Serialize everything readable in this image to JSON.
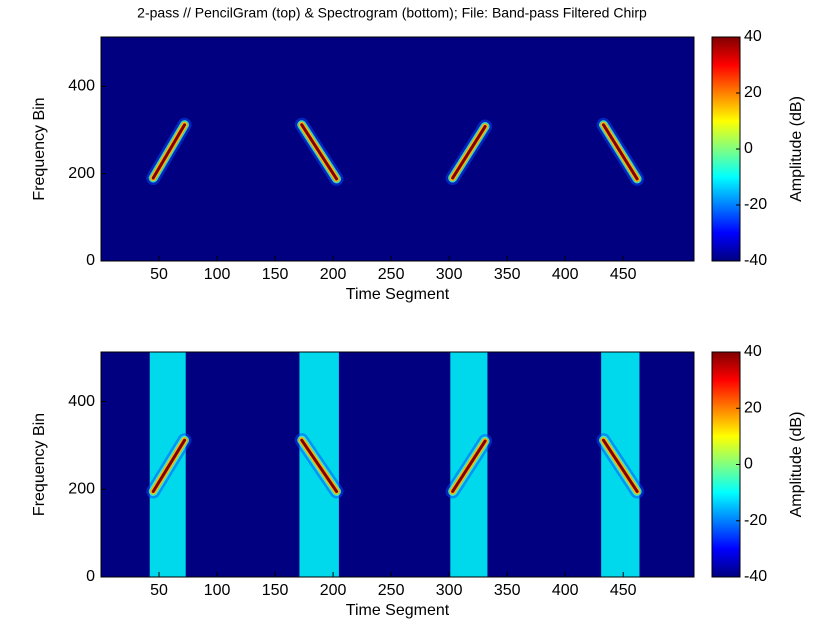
{
  "chart_data": [
    {
      "type": "spectrogram",
      "title": "2-pass // PencilGram (top) & Spectrogram (bottom); File: Band-pass Filtered Chirp",
      "xlabel": "Time Segment",
      "ylabel": "Frequency Bin",
      "colorbar_label": "Amplitude (dB)",
      "xlim": [
        0,
        511
      ],
      "xticks": [
        50,
        100,
        150,
        200,
        250,
        300,
        350,
        400,
        450
      ],
      "ylim": [
        0,
        513
      ],
      "yticks": [
        0,
        200,
        400
      ],
      "clim": [
        -40,
        40
      ],
      "cticks": [
        -40,
        -20,
        0,
        20,
        40
      ],
      "background_level": -40,
      "ridges": [
        {
          "x": [
            45,
            72
          ],
          "y": [
            190,
            312
          ],
          "level": 40
        },
        {
          "x": [
            173,
            203
          ],
          "y": [
            312,
            188
          ],
          "level": 40
        },
        {
          "x": [
            303,
            331
          ],
          "y": [
            190,
            308
          ],
          "level": 40
        },
        {
          "x": [
            433,
            462
          ],
          "y": [
            312,
            188
          ],
          "level": 40
        }
      ]
    },
    {
      "type": "spectrogram",
      "xlabel": "Time Segment",
      "ylabel": "Frequency Bin",
      "colorbar_label": "Amplitude (dB)",
      "xlim": [
        0,
        511
      ],
      "xticks": [
        50,
        100,
        150,
        200,
        250,
        300,
        350,
        400,
        450
      ],
      "ylim": [
        0,
        513
      ],
      "yticks": [
        0,
        200,
        400
      ],
      "clim": [
        -40,
        40
      ],
      "cticks": [
        -40,
        -20,
        0,
        20,
        40
      ],
      "background_level": -40,
      "bands": [
        {
          "x": [
            42,
            73
          ],
          "level": -10
        },
        {
          "x": [
            171,
            205
          ],
          "level": -10
        },
        {
          "x": [
            301,
            333
          ],
          "level": -10
        },
        {
          "x": [
            431,
            464
          ],
          "level": -10
        }
      ],
      "ridges": [
        {
          "x": [
            45,
            72
          ],
          "y": [
            195,
            312
          ],
          "level": 40
        },
        {
          "x": [
            173,
            203
          ],
          "y": [
            312,
            195
          ],
          "level": 40
        },
        {
          "x": [
            303,
            331
          ],
          "y": [
            195,
            310
          ],
          "level": 40
        },
        {
          "x": [
            433,
            462
          ],
          "y": [
            312,
            195
          ],
          "level": 40
        }
      ]
    }
  ]
}
